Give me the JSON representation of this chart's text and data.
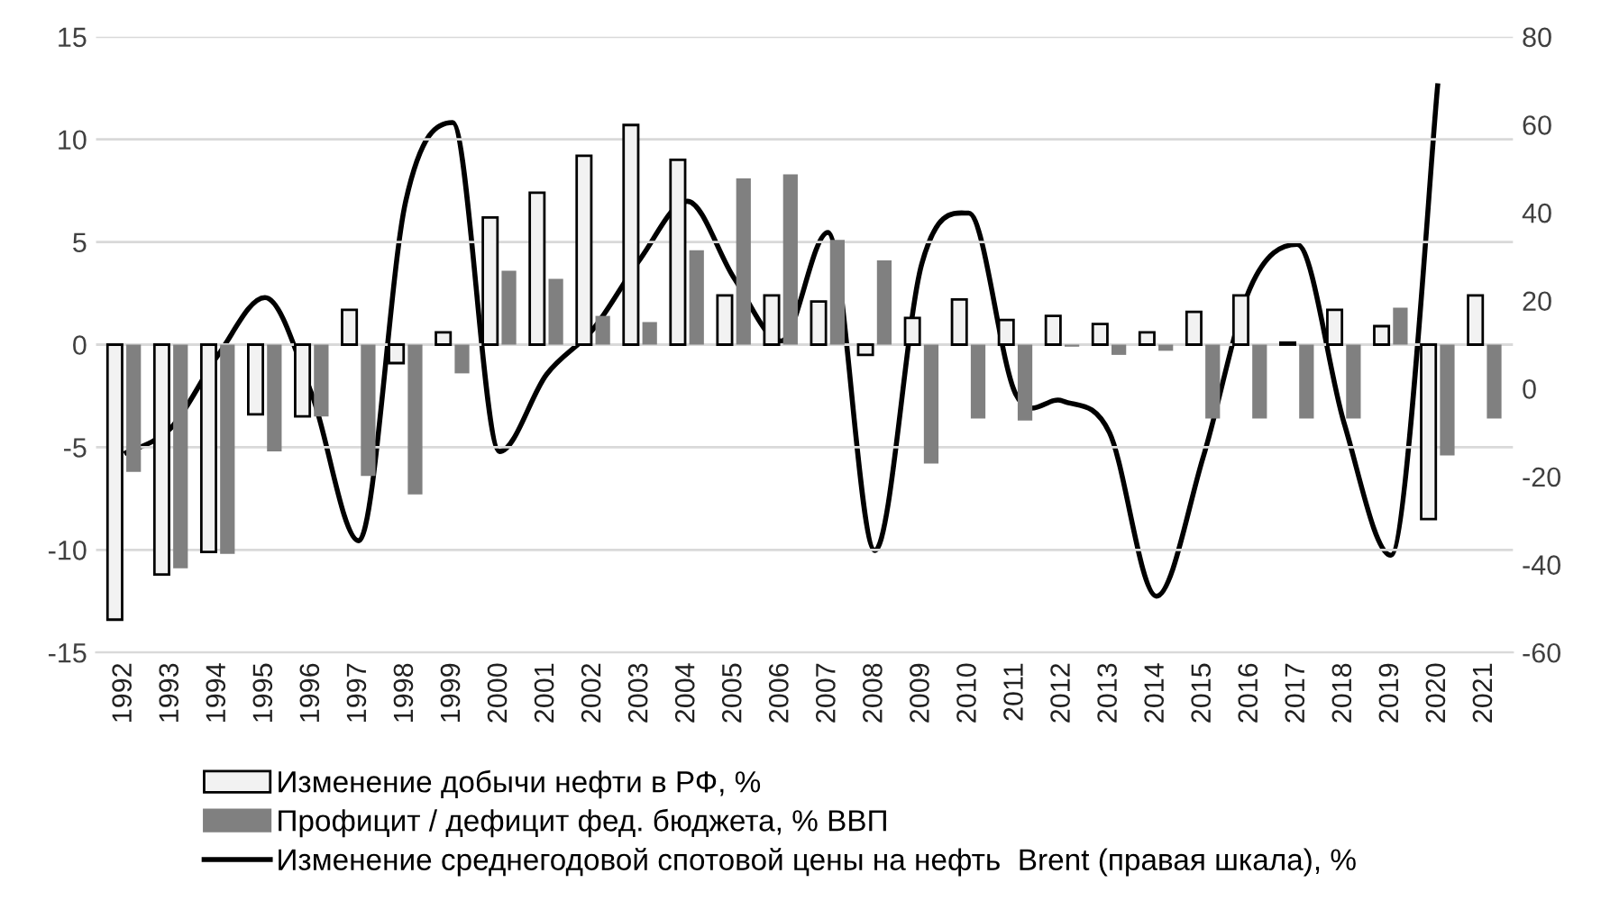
{
  "chart_data": {
    "type": "bar",
    "categories": [
      "1992",
      "1993",
      "1994",
      "1995",
      "1996",
      "1997",
      "1998",
      "1999",
      "2000",
      "2001",
      "2002",
      "2003",
      "2004",
      "2005",
      "2006",
      "2007",
      "2008",
      "2009",
      "2010",
      "2011",
      "2012",
      "2013",
      "2014",
      "2015",
      "2016",
      "2017",
      "2018",
      "2019",
      "2020",
      "2021"
    ],
    "series": [
      {
        "name": "Изменение добычи нефти в РФ, %",
        "color": "#f2f2f2",
        "values": [
          -13.4,
          -11.2,
          -10.1,
          -3.4,
          -3.5,
          1.7,
          -0.9,
          0.6,
          6.2,
          7.4,
          9.2,
          10.7,
          9.0,
          2.4,
          2.4,
          2.1,
          -0.5,
          1.3,
          2.2,
          1.2,
          1.4,
          1.0,
          0.6,
          1.6,
          2.4,
          0.1,
          1.7,
          0.9,
          -8.5,
          2.4
        ]
      },
      {
        "name": "Профицит / дефицит фед. бюджета, % ВВП",
        "color": "#808080",
        "values": [
          -6.2,
          -10.9,
          -10.2,
          -5.2,
          -3.5,
          -6.4,
          -7.3,
          -1.4,
          3.6,
          3.2,
          1.4,
          1.1,
          4.6,
          8.1,
          8.3,
          5.1,
          4.1,
          -5.8,
          -3.6,
          -3.7,
          -0.1,
          -0.5,
          -0.3,
          -3.6,
          -3.6,
          -3.6,
          -3.6,
          1.8,
          -5.4,
          -3.6
        ]
      },
      {
        "name": "Изменение среднегодовой спотовой цены на нефть  Brent (правая шкала), %",
        "type": "line",
        "axis": "y2",
        "color": "#000000",
        "values": [
          -14.8,
          -8.9,
          7.6,
          20.7,
          -1.3,
          -34.6,
          42.6,
          60.5,
          -14.3,
          3.2,
          13.6,
          29.5,
          42.6,
          25.1,
          10.8,
          35.5,
          -36.8,
          28.4,
          39.9,
          -1.2,
          -2.8,
          -10,
          -47.2,
          -15.5,
          22.9,
          32.8,
          -7.8,
          -37.9,
          69.4,
          null
        ]
      }
    ],
    "ylim": [
      -15,
      15
    ],
    "yticks": [
      -15,
      -10,
      -5,
      0,
      5,
      10,
      15
    ],
    "y2lim": [
      -60,
      80
    ],
    "y2ticks": [
      -60,
      -40,
      -20,
      0,
      20,
      40,
      60,
      80
    ],
    "grid": "y",
    "legend": "bottom"
  }
}
